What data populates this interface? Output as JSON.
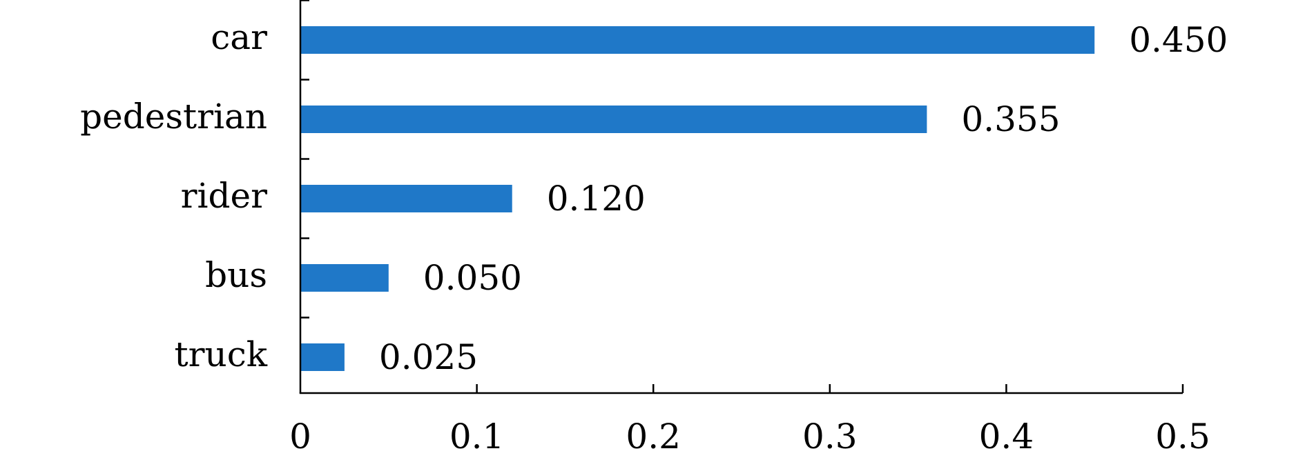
{
  "chart_data": {
    "type": "bar",
    "orientation": "horizontal",
    "categories": [
      "car",
      "pedestrian",
      "rider",
      "bus",
      "truck"
    ],
    "values": [
      0.45,
      0.355,
      0.12,
      0.05,
      0.025
    ],
    "value_labels": [
      "0.450",
      "0.355",
      "0.120",
      "0.050",
      "0.025"
    ],
    "title": "",
    "xlabel": "",
    "ylabel": "",
    "xlim": [
      0,
      0.5
    ],
    "xticks": [
      0,
      0.1,
      0.2,
      0.3,
      0.4,
      0.5
    ],
    "xtick_labels": [
      "0",
      "0.1",
      "0.2",
      "0.3",
      "0.4",
      "0.5"
    ],
    "grid": false,
    "bar_color": "#1f78c8"
  }
}
